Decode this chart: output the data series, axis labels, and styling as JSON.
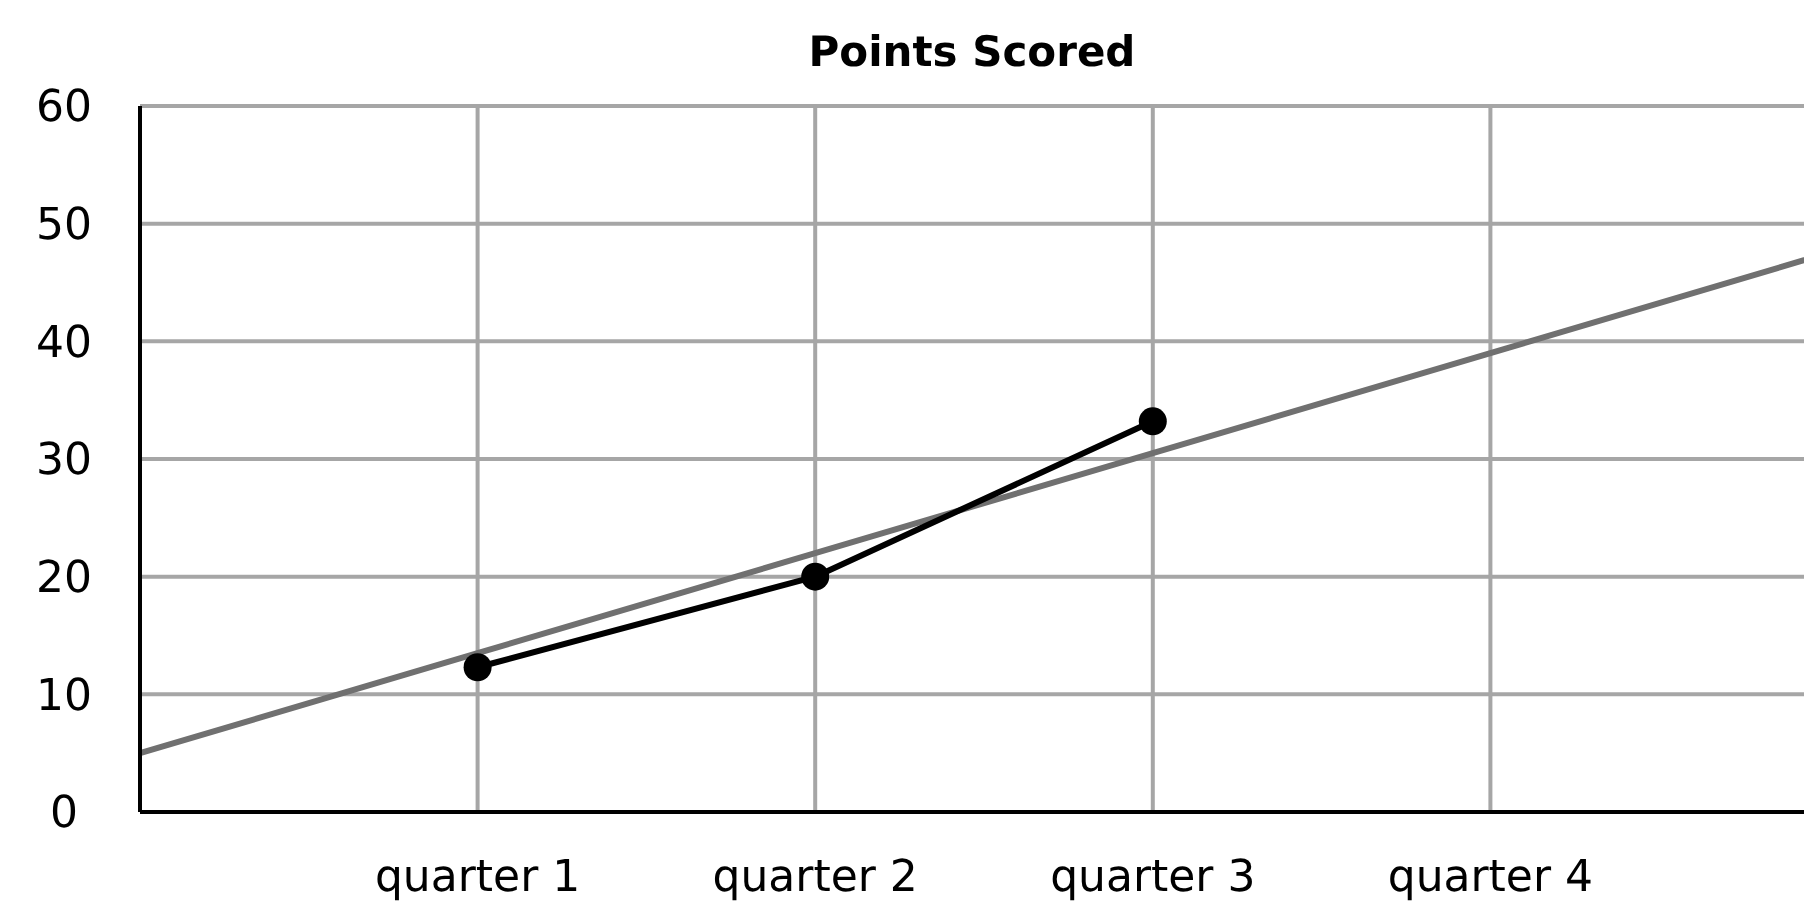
{
  "chart_data": {
    "type": "line",
    "title": "Points Scored",
    "categories": [
      null,
      "quarter 1",
      "quarter 2",
      "quarter 3",
      "quarter 4",
      null
    ],
    "ylim": [
      0,
      60
    ],
    "yticks": [
      0,
      10,
      20,
      30,
      40,
      50,
      60
    ],
    "grid": true,
    "marker": "circle",
    "line_style": "solid",
    "series": [
      {
        "values": [
          null,
          12.3,
          20,
          33.2,
          null,
          null
        ],
        "color": "#000000"
      },
      {
        "type": "line",
        "values": [
          5,
          13.5,
          22,
          30.5,
          39,
          47.5
        ],
        "color": "#707070",
        "marker": "none"
      }
    ]
  }
}
